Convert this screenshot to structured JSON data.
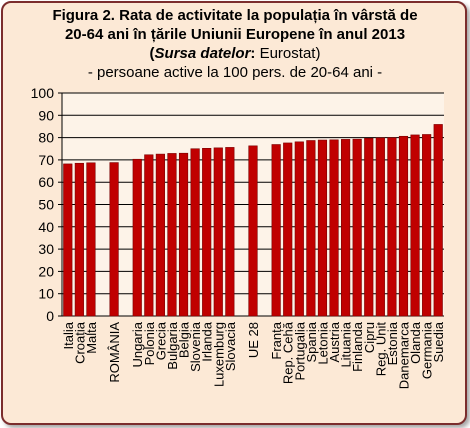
{
  "title": {
    "line1": "Figura 2. Rata de activitate la populația în vârstă de",
    "line2": "20-64 ani în țările Uniunii Europene în anul 2013",
    "source_open": "(",
    "source_label": "Sursa datelor",
    "source_value": ": Eurostat)",
    "subtitle": "- persoane active la 100 pers. de 20-64 ani -"
  },
  "colors": {
    "bar": "#c00000",
    "bar_stroke": "#7a0000",
    "plot_bg": "#fdf3e8",
    "frame_bg": "#fce9d6",
    "frame_border": "#7b2d2d",
    "grid": "#000000"
  },
  "chart_data": {
    "type": "bar",
    "categories": [
      "Italia",
      "Croația",
      "Malta",
      "",
      "ROMÂNIA",
      "",
      "Ungaria",
      "Polonia",
      "Grecia",
      "Bulgaria",
      "Belgia",
      "Slovenia",
      "Irlanda",
      "Luxemburg",
      "Slovacia",
      "",
      "UE 28",
      "",
      "Franța",
      "Rep. Cehă",
      "Portugalia",
      "Spania",
      "Letonia",
      "Austria",
      "Lituania",
      "Finlanda",
      "Cipru",
      "Reg. Unit",
      "Estonia",
      "Danemarca",
      "Olanda",
      "Germania",
      "Suedia"
    ],
    "values": [
      68.2,
      68.5,
      68.7,
      null,
      68.8,
      null,
      70.3,
      72.3,
      72.6,
      72.9,
      73.0,
      75.0,
      75.2,
      75.4,
      75.6,
      null,
      76.3,
      null,
      76.9,
      77.6,
      78.1,
      78.7,
      78.9,
      79.0,
      79.2,
      79.3,
      79.7,
      79.9,
      80.0,
      80.6,
      81.2,
      81.4,
      85.9
    ],
    "ylim": [
      0,
      100
    ],
    "yticks": [
      0,
      10,
      20,
      30,
      40,
      50,
      60,
      70,
      80,
      90,
      100
    ],
    "grid": true
  }
}
